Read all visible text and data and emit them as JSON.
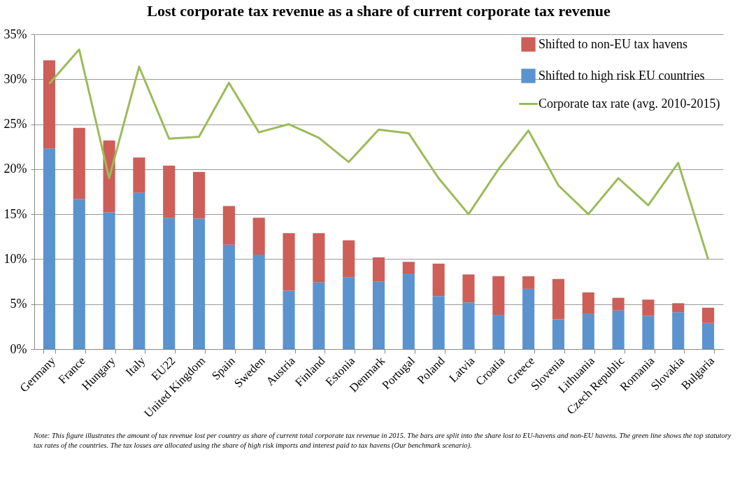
{
  "chart_data": {
    "type": "bar",
    "title": "Lost corporate tax revenue as a share of current corporate tax revenue",
    "categories": [
      "Germany",
      "France",
      "Hungary",
      "Italy",
      "EU22",
      "United Kingdom",
      "Spain",
      "Sweden",
      "Austria",
      "Finland",
      "Estonia",
      "Denmark",
      "Portugal",
      "Poland",
      "Latvia",
      "Croatia",
      "Greece",
      "Slovenia",
      "Lithuania",
      "Czech Republic",
      "Romania",
      "Slovakia",
      "Bulgaria"
    ],
    "stacked": true,
    "series": [
      {
        "name": "Shifted to high risk EU countries",
        "color": "#5b93cf",
        "values": [
          22.3,
          16.7,
          15.2,
          17.4,
          14.6,
          14.5,
          11.6,
          10.5,
          6.5,
          7.4,
          8.0,
          7.5,
          8.4,
          5.9,
          5.2,
          3.8,
          6.7,
          3.3,
          3.9,
          4.3,
          3.7,
          4.1,
          2.9
        ]
      },
      {
        "name": "Shifted to non-EU tax havens",
        "color": "#cd5e58",
        "values": [
          9.8,
          7.9,
          8.0,
          3.9,
          5.8,
          5.2,
          4.3,
          4.1,
          6.4,
          5.5,
          4.1,
          2.7,
          1.3,
          3.6,
          3.1,
          4.3,
          1.4,
          4.5,
          2.4,
          1.4,
          1.8,
          1.0,
          1.7
        ]
      },
      {
        "name": "Corporate tax rate (avg. 2010-2015)",
        "type": "line",
        "color": "#9bbb59",
        "values": [
          29.5,
          33.3,
          19.0,
          31.4,
          23.4,
          23.6,
          29.6,
          24.1,
          25.0,
          23.5,
          20.8,
          24.4,
          24.0,
          19.0,
          15.0,
          20.0,
          24.3,
          18.2,
          15.0,
          19.0,
          16.0,
          20.7,
          10.0
        ]
      }
    ],
    "ylim": [
      0,
      35
    ],
    "yticks": [
      {
        "value": 0,
        "label": "0%"
      },
      {
        "value": 5,
        "label": "5%"
      },
      {
        "value": 10,
        "label": "10%"
      },
      {
        "value": 15,
        "label": "15%"
      },
      {
        "value": 20,
        "label": "20%"
      },
      {
        "value": 25,
        "label": "25%"
      },
      {
        "value": 30,
        "label": "30%"
      },
      {
        "value": 35,
        "label": "35%"
      }
    ],
    "grid": "y",
    "legend": "top right",
    "marker": "none",
    "line_style": "solid",
    "annotations": [
      "Note:  This figure illustrates the amount of  tax revenue lost per country as share of current total corporate tax revenue in 2015. The bars are split into the share lost to EU-havens and non-EU havens. The green line shows the top statutory tax rates of the countries. The tax losses are allocated using the share  of high risk imports and interest paid to tax havens (Our benchmark scenario)."
    ]
  }
}
